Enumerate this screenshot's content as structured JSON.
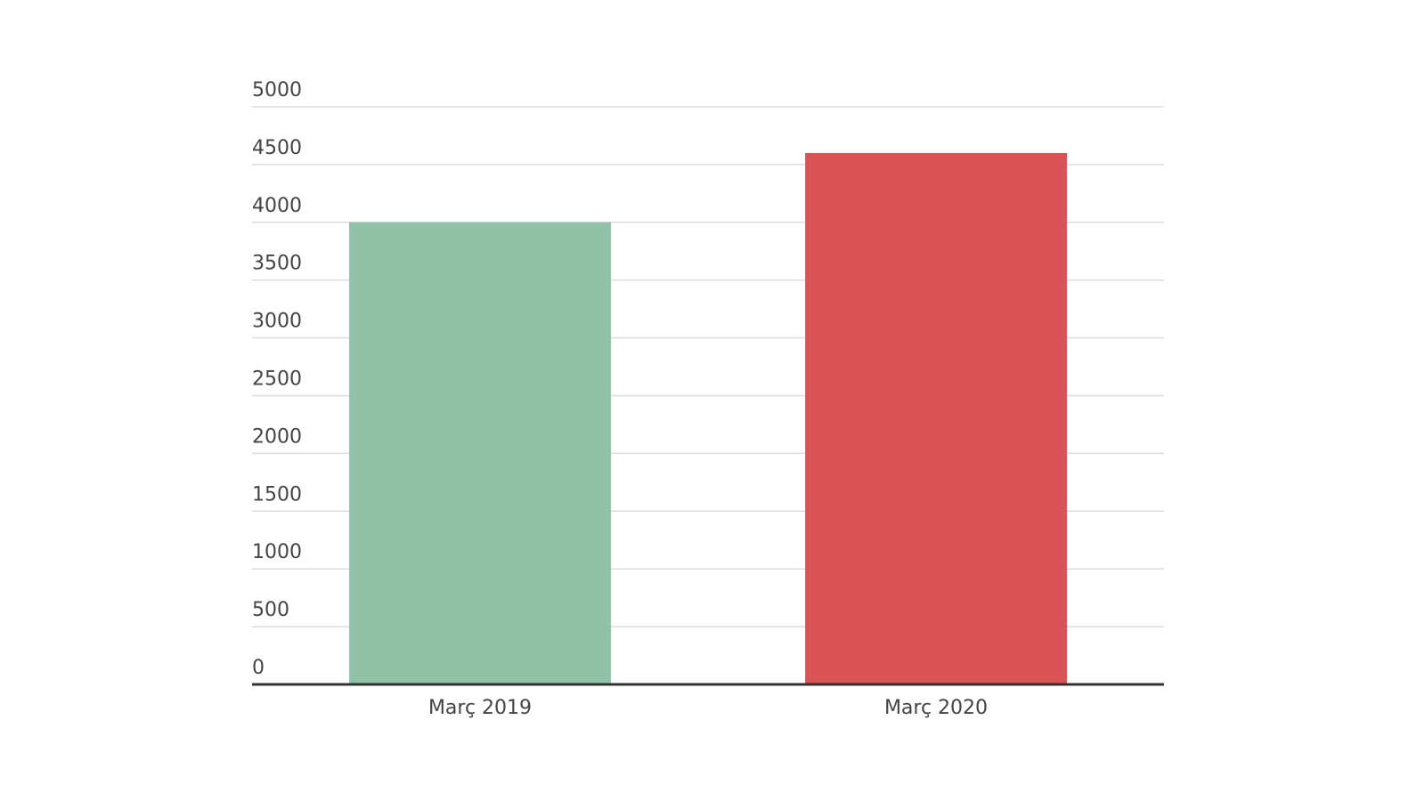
{
  "chart_data": {
    "type": "bar",
    "categories": [
      "Març 2019",
      "Març 2020"
    ],
    "values": [
      4000,
      4600
    ],
    "colors": [
      "#8fc2a6",
      "#d95355"
    ],
    "ylim": [
      0,
      5000
    ],
    "yticks": [
      0,
      500,
      1000,
      1500,
      2000,
      2500,
      3000,
      3500,
      4000,
      4500,
      5000
    ],
    "grid": true
  }
}
